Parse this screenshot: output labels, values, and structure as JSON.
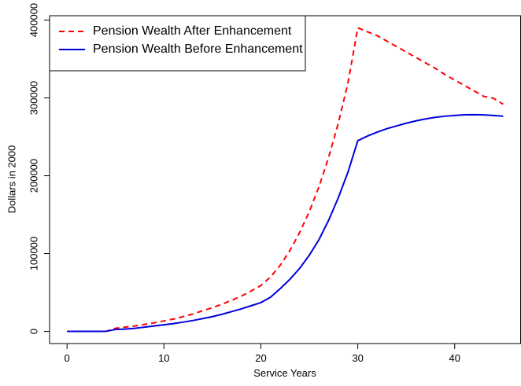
{
  "chart_data": {
    "type": "line",
    "xlabel": "Service Years",
    "ylabel": "Dollars in 2000",
    "x": [
      0,
      1,
      2,
      3,
      4,
      5,
      6,
      7,
      8,
      9,
      10,
      11,
      12,
      13,
      14,
      15,
      16,
      17,
      18,
      19,
      20,
      21,
      22,
      23,
      24,
      25,
      26,
      27,
      28,
      29,
      30,
      31,
      32,
      33,
      34,
      35,
      36,
      37,
      38,
      39,
      40,
      41,
      42,
      43,
      44,
      45
    ],
    "series": [
      {
        "name": "Pension Wealth After Enhancement",
        "color": "#ff0000",
        "dash": true,
        "values": [
          0,
          0,
          0,
          0,
          0,
          4000,
          5500,
          7000,
          9000,
          11000,
          13500,
          16000,
          19000,
          22500,
          26500,
          30500,
          35000,
          40000,
          45500,
          52000,
          59000,
          70000,
          85000,
          104000,
          127000,
          154000,
          186000,
          224000,
          268000,
          320000,
          390000,
          385000,
          380000,
          373000,
          366000,
          359000,
          352000,
          345000,
          338000,
          330000,
          323000,
          316000,
          309000,
          302000,
          299500,
          292000
        ]
      },
      {
        "name": "Pension Wealth Before Enhancement",
        "color": "#0000dd",
        "dash": false,
        "values": [
          0,
          0,
          0,
          0,
          0,
          2500,
          3000,
          4000,
          5500,
          7000,
          8500,
          10000,
          12000,
          14000,
          16500,
          19000,
          22000,
          25500,
          29000,
          33000,
          37000,
          44000,
          55000,
          67000,
          81000,
          98000,
          118000,
          143000,
          172000,
          205000,
          245000,
          251000,
          256000,
          260500,
          264000,
          267500,
          270500,
          273000,
          275000,
          276500,
          277500,
          278300,
          278500,
          278200,
          277500,
          276500
        ]
      }
    ],
    "xlim": [
      -1.8,
      46.8
    ],
    "xticks": [
      0,
      10,
      20,
      30,
      40
    ],
    "ylim": [
      -15600,
      405600
    ],
    "yticks": [
      0,
      100000,
      200000,
      300000,
      400000
    ],
    "legend": "top-left"
  }
}
